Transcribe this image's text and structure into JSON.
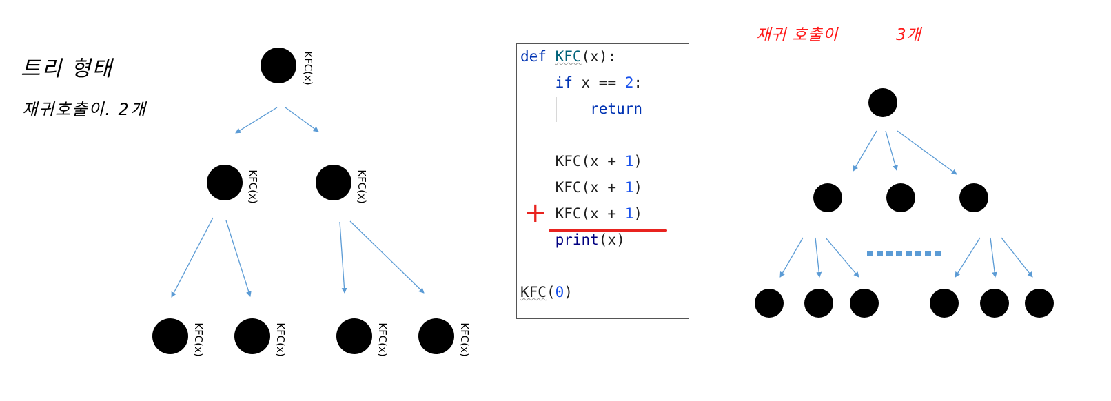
{
  "left_panel": {
    "note_line1": "트리 형태",
    "note_line2": "재귀호출이. 2개",
    "node_label": "KFC(x)"
  },
  "code": {
    "lines": [
      {
        "indent": "",
        "def_kw": "def",
        "fn_name": "KFC",
        "rest": "(x):"
      },
      {
        "indent": "    ",
        "if_kw": "if",
        "cond_mid": " x == ",
        "cond_num": "2",
        "cond_end": ":"
      },
      {
        "indent": "        ",
        "return_kw": "return"
      },
      {
        "indent": "    ",
        "call": "KFC(x + ",
        "num": "1",
        "end": ")"
      },
      {
        "indent": "    ",
        "call": "KFC(x + ",
        "num": "1",
        "end": ")"
      },
      {
        "indent": "    ",
        "call": "KFC(x + ",
        "num": "1",
        "end": ")"
      },
      {
        "indent": "    ",
        "print_fn": "print",
        "rest": "(x)"
      },
      {
        "indent": "",
        "call": "KFC",
        "paren_open": "(",
        "num": "0",
        "end": ")"
      }
    ],
    "plus_mark": "+"
  },
  "right_panel": {
    "note_part1": "재귀 호출이",
    "note_part2": "3개"
  },
  "colors": {
    "arrow": "#5b9bd5",
    "node": "#000000",
    "annotation_red": "#e8231f"
  }
}
